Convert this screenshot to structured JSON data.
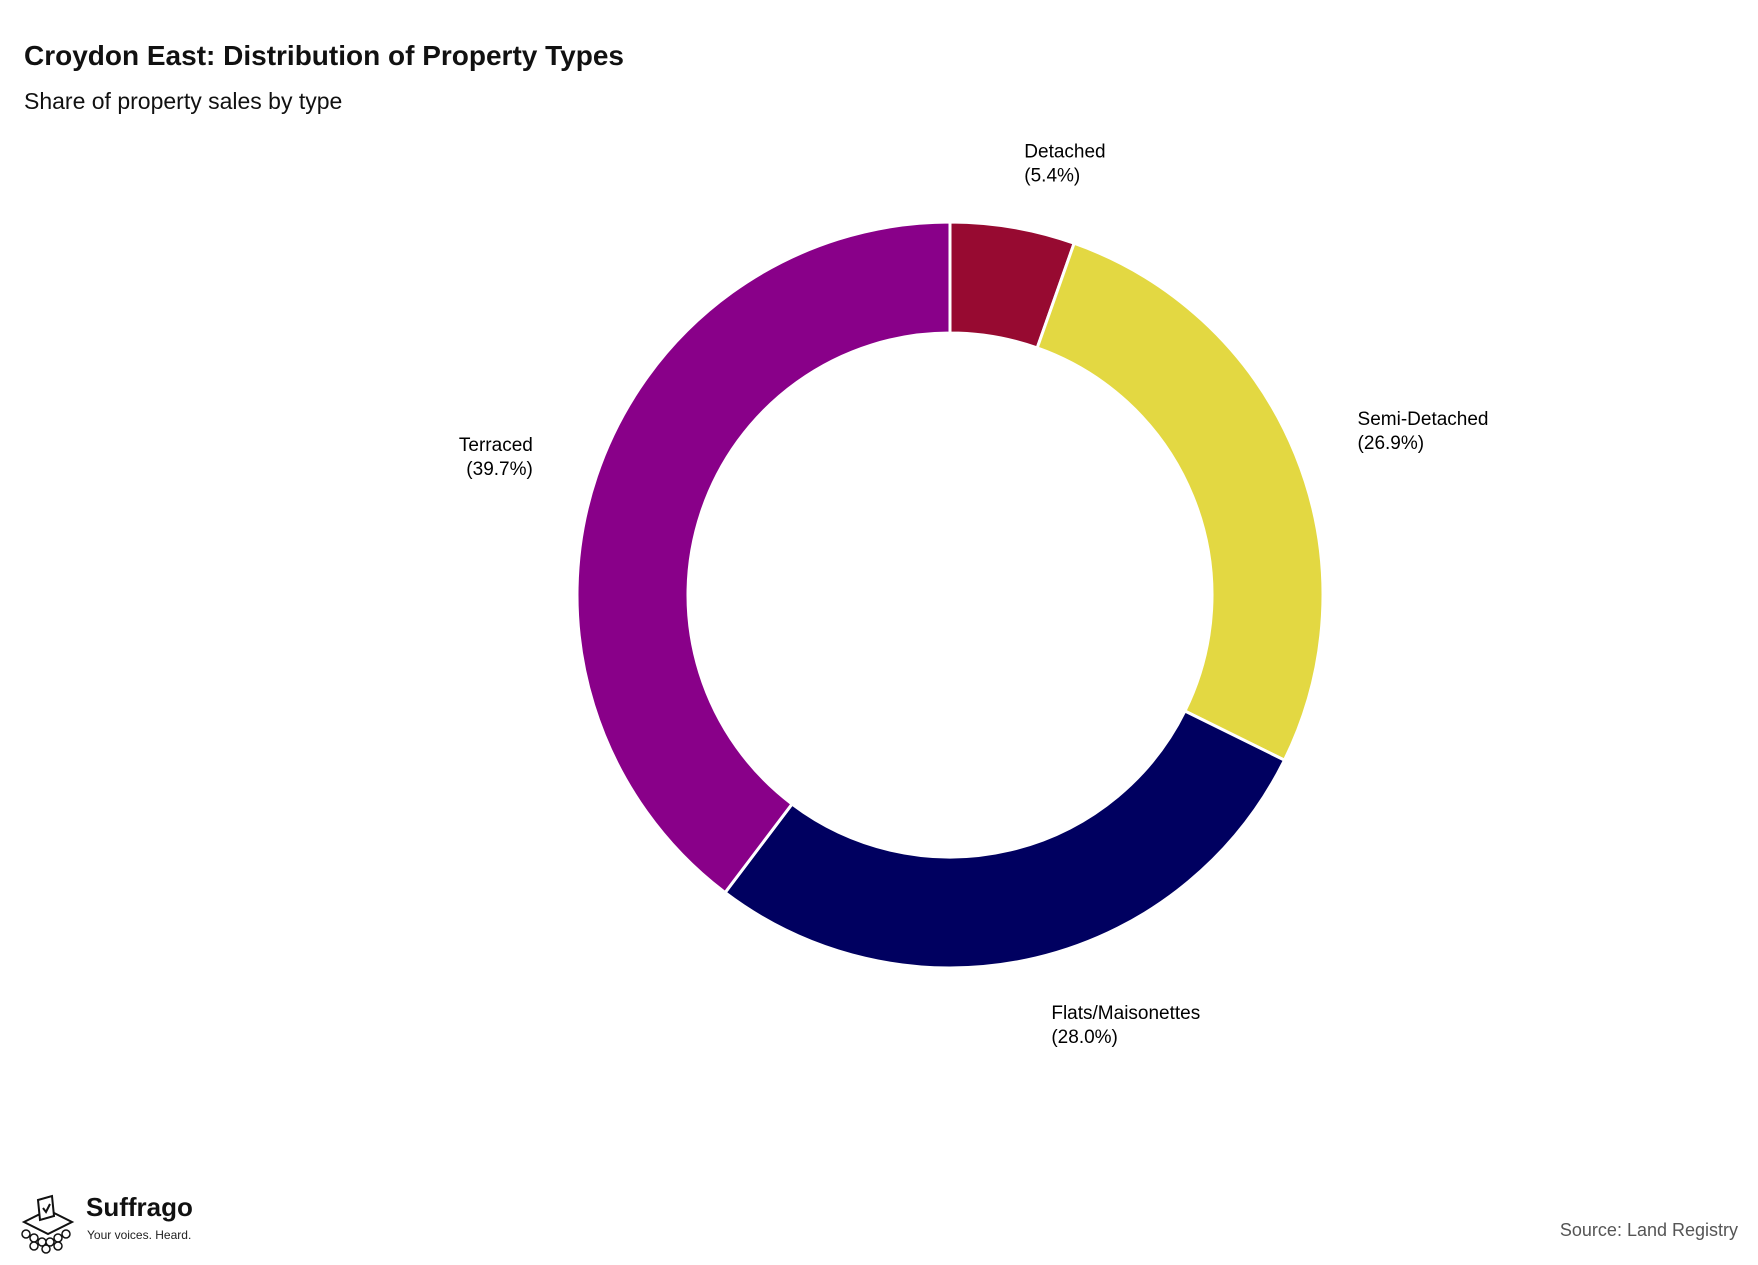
{
  "title": "Croydon East: Distribution of Property Types",
  "subtitle": "Share of property sales by type",
  "source": "Source: Land Registry",
  "logo": {
    "name": "Suffrago",
    "tagline": "Your voices. Heard."
  },
  "chart_data": {
    "type": "pie",
    "style": "donut",
    "title": "Croydon East: Distribution of Property Types",
    "subtitle": "Share of property sales by type",
    "slices": [
      {
        "label": "Detached",
        "value": 5.4,
        "display": "(5.4%)",
        "color": "#970a31"
      },
      {
        "label": "Semi-Detached",
        "value": 26.9,
        "display": "(26.9%)",
        "color": "#e3d842"
      },
      {
        "label": "Flats/Maisonettes",
        "value": 28.0,
        "display": "(28.0%)",
        "color": "#000060"
      },
      {
        "label": "Terraced",
        "value": 39.7,
        "display": "(39.7%)",
        "color": "#890089"
      }
    ]
  }
}
